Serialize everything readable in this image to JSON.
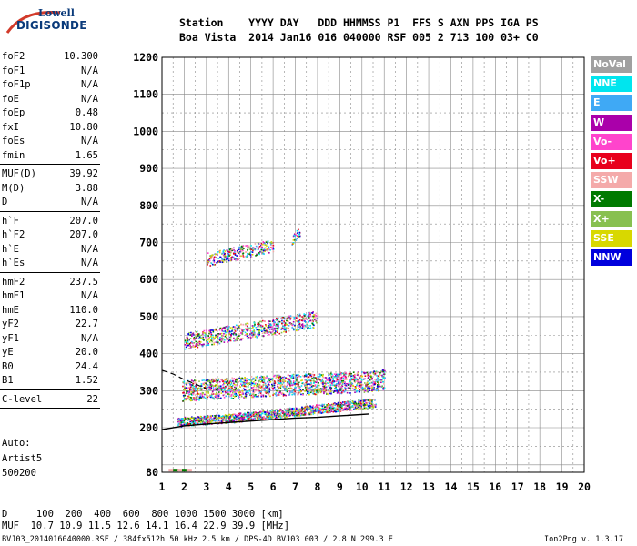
{
  "logo": {
    "line1": "Lowell",
    "line2": "DIGISONDE"
  },
  "header": {
    "line1": "Station    YYYY DAY   DDD HHMMSS P1  FFS S AXN PPS IGA PS",
    "line2": "Boa Vista  2014 Jan16 016 040000 RSF 005 2 713 100 03+ C0"
  },
  "params": [
    {
      "label": "foF2",
      "value": "10.300"
    },
    {
      "label": "foF1",
      "value": "N/A"
    },
    {
      "label": "foF1p",
      "value": "N/A"
    },
    {
      "label": "foE",
      "value": "N/A"
    },
    {
      "label": "foEp",
      "value": "0.48"
    },
    {
      "label": "fxI",
      "value": "10.80"
    },
    {
      "label": "foEs",
      "value": "N/A"
    },
    {
      "label": "fmin",
      "value": "1.65"
    },
    {
      "label": "MUF(D)",
      "value": "39.92"
    },
    {
      "label": "M(D)",
      "value": "3.88"
    },
    {
      "label": "D",
      "value": "N/A"
    },
    {
      "label": "h`F",
      "value": "207.0"
    },
    {
      "label": "h`F2",
      "value": "207.0"
    },
    {
      "label": "h`E",
      "value": "N/A"
    },
    {
      "label": "h`Es",
      "value": "N/A"
    },
    {
      "label": "hmF2",
      "value": "237.5"
    },
    {
      "label": "hmF1",
      "value": "N/A"
    },
    {
      "label": "hmE",
      "value": "110.0"
    },
    {
      "label": "yF2",
      "value": "22.7"
    },
    {
      "label": "yF1",
      "value": "N/A"
    },
    {
      "label": "yE",
      "value": "20.0"
    },
    {
      "label": "B0",
      "value": "24.4"
    },
    {
      "label": "B1",
      "value": "1.52"
    },
    {
      "label": "C-level",
      "value": "22"
    }
  ],
  "auto": {
    "line1": "Auto:",
    "line2": "Artist5",
    "line3": "500200"
  },
  "legend": [
    {
      "label": "NoVal",
      "color": "#a0a0a0"
    },
    {
      "label": "NNE",
      "color": "#00e5ee"
    },
    {
      "label": "E",
      "color": "#3fa9f5"
    },
    {
      "label": "W",
      "color": "#aa00aa"
    },
    {
      "label": "Vo-",
      "color": "#ff44cc"
    },
    {
      "label": "Vo+",
      "color": "#e8001c"
    },
    {
      "label": "SSW",
      "color": "#f4aaaa"
    },
    {
      "label": "X-",
      "color": "#007a00"
    },
    {
      "label": "X+",
      "color": "#88c050"
    },
    {
      "label": "SSE",
      "color": "#d8d800"
    },
    {
      "label": "NNW",
      "color": "#0000dd"
    }
  ],
  "footer": {
    "line1": "D     100  200  400  600  800 1000 1500 3000 [km]",
    "line2": "MUF  10.7 10.9 11.5 12.6 14.1 16.4 22.9 39.9 [MHz]",
    "line3": "BVJ03_2014016040000.RSF / 384fx512h 50 kHz 2.5 km / DPS-4D BVJ03 003 / 2.8 N 299.3 E",
    "version": "Ion2Png v. 1.3.17"
  },
  "chart_data": {
    "type": "scatter",
    "xlim": [
      1,
      20
    ],
    "ylim": [
      80,
      1200
    ],
    "x_ticks": [
      1,
      2,
      3,
      4,
      5,
      6,
      7,
      8,
      9,
      10,
      11,
      12,
      13,
      14,
      15,
      16,
      17,
      18,
      19,
      20
    ],
    "y_ticks": [
      80,
      100,
      200,
      300,
      400,
      500,
      600,
      700,
      800,
      900,
      1000,
      1100,
      1200
    ],
    "y_tick_labels": [
      "80",
      "",
      "200",
      "300",
      "400",
      "500",
      "600",
      "700",
      "800",
      "900",
      "1000",
      "1100",
      "1200"
    ],
    "grid": true,
    "legend_position": "right",
    "trace_groups": [
      {
        "name": "O-trace F2",
        "x": [
          1.7,
          2.0,
          3.0,
          4.0,
          5.0,
          6.0,
          7.0,
          8.0,
          9.0,
          10.0,
          10.6
        ],
        "y": [
          215,
          218,
          222,
          226,
          232,
          238,
          245,
          252,
          258,
          265,
          270
        ]
      },
      {
        "name": "2nd-hop cluster",
        "x": [
          1.9,
          3.0,
          4.0,
          5.0,
          6.0,
          7.0,
          8.0,
          9.0,
          10.0,
          11.0
        ],
        "y": [
          300,
          305,
          308,
          312,
          315,
          318,
          320,
          322,
          325,
          330
        ]
      },
      {
        "name": "3rd-hop band",
        "x": [
          2.0,
          3.0,
          4.0,
          5.0,
          6.0,
          7.0,
          8.0
        ],
        "y": [
          435,
          445,
          455,
          465,
          475,
          485,
          495
        ]
      },
      {
        "name": "4th-hop band",
        "x": [
          3.0,
          4.0,
          5.0,
          6.0
        ],
        "y": [
          655,
          668,
          680,
          695
        ]
      },
      {
        "name": "Upper 4th-hop",
        "x": [
          6.8,
          7.0,
          7.2
        ],
        "y": [
          710,
          720,
          730
        ]
      }
    ],
    "profile_line": {
      "x": [
        1.0,
        2.0,
        3.0,
        4.0,
        5.0,
        6.0,
        7.0,
        8.0,
        9.0,
        10.3
      ],
      "y": [
        195,
        205,
        210,
        214,
        218,
        222,
        226,
        228,
        232,
        237
      ]
    },
    "dashed_line": {
      "x": [
        1.0,
        1.5,
        2.0,
        2.5,
        3.0
      ],
      "y": [
        355,
        345,
        330,
        318,
        305
      ]
    },
    "ssw_markers": {
      "x": [
        1.3,
        1.5,
        1.7,
        1.9,
        2.1
      ],
      "y": [
        82,
        82,
        82,
        82,
        82
      ]
    }
  }
}
